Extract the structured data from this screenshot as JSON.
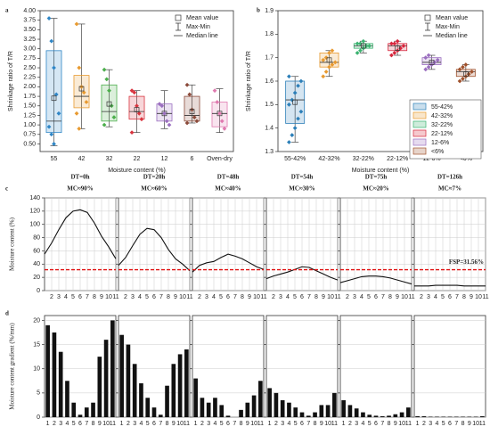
{
  "chart_data": [
    {
      "type": "box",
      "panel": "a",
      "ylabel": "Shrinkage ratio of T/R",
      "xlabel": "Moisture content (%)",
      "categories": [
        "55",
        "42",
        "32",
        "22",
        "12",
        "6",
        "Oven-dry"
      ],
      "ylim": [
        0.3,
        4.0
      ],
      "yticks": [
        {
          "value": 0.5,
          "label": "0.50"
        },
        {
          "value": 0.75,
          "label": "0.75"
        },
        {
          "value": 1,
          "label": "1.00"
        },
        {
          "value": 1.25,
          "label": "1.25"
        },
        {
          "value": 1.5,
          "label": "1.50"
        },
        {
          "value": 1.75,
          "label": "1.75"
        },
        {
          "value": 2,
          "label": "2.00"
        },
        {
          "value": 2.25,
          "label": "2.25"
        },
        {
          "value": 2.5,
          "label": "2.50"
        },
        {
          "value": 2.75,
          "label": "2.75"
        },
        {
          "value": 3,
          "label": "3.00"
        },
        {
          "value": 3.25,
          "label": "3.25"
        },
        {
          "value": 3.5,
          "label": "3.50"
        },
        {
          "value": 3.75,
          "label": "3.75"
        },
        {
          "value": 4,
          "label": "4.00"
        }
      ],
      "legend": [
        "Mean value",
        "Max-Min",
        "Median line"
      ],
      "boxes": [
        {
          "color": "#2f86c6",
          "min": 0.45,
          "q1": 0.8,
          "median": 1.1,
          "q3": 2.95,
          "max": 3.8,
          "mean": 1.7,
          "points": [
            3.8,
            3.2,
            2.5,
            1.8,
            1.3,
            0.95,
            0.75,
            0.5
          ]
        },
        {
          "color": "#e89a30",
          "min": 0.9,
          "q1": 1.45,
          "median": 1.75,
          "q3": 2.3,
          "max": 3.65,
          "mean": 1.95,
          "points": [
            3.65,
            2.5,
            2.0,
            1.85,
            1.6,
            1.3,
            0.9
          ]
        },
        {
          "color": "#4cae4c",
          "min": 0.95,
          "q1": 1.1,
          "median": 1.35,
          "q3": 2.05,
          "max": 2.45,
          "mean": 1.55,
          "points": [
            2.45,
            2.2,
            1.9,
            1.5,
            1.2,
            1.0
          ]
        },
        {
          "color": "#d9343f",
          "min": 0.8,
          "q1": 1.15,
          "median": 1.35,
          "q3": 1.75,
          "max": 1.9,
          "mean": 1.4,
          "points": [
            1.9,
            1.85,
            1.5,
            1.3,
            1.15,
            0.8
          ]
        },
        {
          "color": "#9b6fc0",
          "min": 0.9,
          "q1": 1.1,
          "median": 1.3,
          "q3": 1.55,
          "max": 1.9,
          "mean": 1.3,
          "points": [
            1.55,
            1.5,
            1.3,
            1.1,
            1.0
          ]
        },
        {
          "color": "#8b4a3a",
          "min": 1.05,
          "q1": 1.1,
          "median": 1.25,
          "q3": 1.75,
          "max": 2.05,
          "mean": 1.35,
          "points": [
            2.05,
            1.8,
            1.4,
            1.2,
            1.1,
            1.05
          ]
        },
        {
          "color": "#e07ab0",
          "min": 0.8,
          "q1": 0.95,
          "median": 1.3,
          "q3": 1.6,
          "max": 1.95,
          "mean": 1.3,
          "points": [
            1.9,
            1.6,
            1.3,
            1.1,
            0.9
          ]
        }
      ]
    },
    {
      "type": "box",
      "panel": "b",
      "ylabel": "Shrinkage ratio of T/R",
      "xlabel": "Moisture content (%)",
      "categories": [
        "55-42%",
        "42-32%",
        "32-22%",
        "22-12%",
        "12-6%",
        "<6%"
      ],
      "ylim": [
        1.3,
        1.9
      ],
      "yticks": [
        1.3,
        1.4,
        1.5,
        1.6,
        1.7,
        1.8,
        1.9
      ],
      "legend": [
        "Mean value",
        "Max-Min",
        "Median line"
      ],
      "category_legend": true,
      "boxes": [
        {
          "color": "#2c7fb8",
          "min": 1.34,
          "q1": 1.42,
          "median": 1.52,
          "q3": 1.6,
          "max": 1.62,
          "mean": 1.51,
          "points": [
            1.34,
            1.37,
            1.4,
            1.44,
            1.47,
            1.5,
            1.52,
            1.55,
            1.58,
            1.6,
            1.62
          ]
        },
        {
          "color": "#e89a30",
          "min": 1.62,
          "q1": 1.66,
          "median": 1.68,
          "q3": 1.72,
          "max": 1.73,
          "mean": 1.69,
          "points": [
            1.62,
            1.64,
            1.66,
            1.67,
            1.68,
            1.69,
            1.7,
            1.72,
            1.73
          ]
        },
        {
          "color": "#3cb371",
          "min": 1.72,
          "q1": 1.74,
          "median": 1.75,
          "q3": 1.76,
          "max": 1.77,
          "mean": 1.75,
          "points": [
            1.72,
            1.73,
            1.74,
            1.75,
            1.75,
            1.76,
            1.76,
            1.77
          ]
        },
        {
          "color": "#d7263d",
          "min": 1.71,
          "q1": 1.73,
          "median": 1.75,
          "q3": 1.76,
          "max": 1.77,
          "mean": 1.74,
          "points": [
            1.71,
            1.72,
            1.73,
            1.74,
            1.75,
            1.76,
            1.76,
            1.77
          ]
        },
        {
          "color": "#9b6fc0",
          "min": 1.65,
          "q1": 1.67,
          "median": 1.68,
          "q3": 1.7,
          "max": 1.71,
          "mean": 1.68,
          "points": [
            1.65,
            1.66,
            1.67,
            1.68,
            1.69,
            1.7,
            1.71
          ]
        },
        {
          "color": "#a0522d",
          "min": 1.6,
          "q1": 1.62,
          "median": 1.64,
          "q3": 1.65,
          "max": 1.67,
          "mean": 1.63,
          "points": [
            1.6,
            1.61,
            1.62,
            1.63,
            1.64,
            1.65,
            1.66,
            1.67
          ]
        }
      ]
    },
    {
      "type": "line",
      "panel": "c",
      "title": "DT=0h",
      "subtitle": "MC≈90%",
      "ylabel": "Moisture content (%)",
      "tick_labels": true,
      "grid": true,
      "color": "#111",
      "x": [
        1,
        2,
        3,
        4,
        5,
        6,
        7,
        8,
        9,
        10,
        11
      ],
      "values": [
        55,
        72,
        92,
        110,
        120,
        122,
        118,
        102,
        82,
        66,
        48
      ],
      "xlim": [
        1,
        11
      ],
      "xticks": [
        2,
        3,
        4,
        5,
        6,
        7,
        8,
        9,
        10,
        11
      ],
      "ylim": [
        0,
        140
      ],
      "yticks": [
        0,
        20,
        40,
        60,
        80,
        100,
        120,
        140
      ],
      "hline": 31.56
    },
    {
      "type": "line",
      "title": "DT=20h",
      "subtitle": "MC≈60%",
      "tick_labels": false,
      "grid": true,
      "color": "#111",
      "x": [
        1,
        2,
        3,
        4,
        5,
        6,
        7,
        8,
        9,
        10,
        11
      ],
      "values": [
        38,
        50,
        68,
        85,
        94,
        92,
        80,
        62,
        48,
        40,
        30
      ],
      "xlim": [
        1,
        11
      ],
      "xticks": [
        2,
        3,
        4,
        5,
        6,
        7,
        8,
        9,
        10,
        11
      ],
      "ylim": [
        0,
        140
      ],
      "yticks": [
        0,
        20,
        40,
        60,
        80,
        100,
        120,
        140
      ],
      "hline": 31.56
    },
    {
      "type": "line",
      "title": "DT=48h",
      "subtitle": "MC≈40%",
      "tick_labels": false,
      "grid": true,
      "color": "#111",
      "x": [
        1,
        2,
        3,
        4,
        5,
        6,
        7,
        8,
        9,
        10,
        11
      ],
      "values": [
        28,
        38,
        42,
        44,
        50,
        55,
        52,
        48,
        42,
        36,
        32
      ],
      "xlim": [
        1,
        11
      ],
      "xticks": [
        2,
        3,
        4,
        5,
        6,
        7,
        8,
        9,
        10,
        11
      ],
      "ylim": [
        0,
        140
      ],
      "yticks": [
        0,
        20,
        40,
        60,
        80,
        100,
        120,
        140
      ],
      "hline": 31.56
    },
    {
      "type": "line",
      "title": "DT=54h",
      "subtitle": "MC≈30%",
      "tick_labels": false,
      "grid": true,
      "color": "#111",
      "x": [
        1,
        2,
        3,
        4,
        5,
        6,
        7,
        8,
        9,
        10,
        11
      ],
      "values": [
        18,
        22,
        25,
        28,
        32,
        36,
        35,
        30,
        25,
        20,
        16
      ],
      "xlim": [
        1,
        11
      ],
      "xticks": [
        2,
        3,
        4,
        5,
        6,
        7,
        8,
        9,
        10,
        11
      ],
      "ylim": [
        0,
        140
      ],
      "yticks": [
        0,
        20,
        40,
        60,
        80,
        100,
        120,
        140
      ],
      "hline": 31.56
    },
    {
      "type": "line",
      "title": "DT=75h",
      "subtitle": "MC≈20%",
      "tick_labels": false,
      "grid": true,
      "color": "#111",
      "x": [
        1,
        2,
        3,
        4,
        5,
        6,
        7,
        8,
        9,
        10,
        11
      ],
      "values": [
        12,
        15,
        18,
        21,
        22,
        22,
        21,
        19,
        16,
        13,
        10
      ],
      "xlim": [
        1,
        11
      ],
      "xticks": [
        2,
        3,
        4,
        5,
        6,
        7,
        8,
        9,
        10,
        11
      ],
      "ylim": [
        0,
        140
      ],
      "yticks": [
        0,
        20,
        40,
        60,
        80,
        100,
        120,
        140
      ],
      "hline": 31.56
    },
    {
      "type": "line",
      "title": "DT=126h",
      "subtitle": "MC≈7%",
      "tick_labels": false,
      "grid": true,
      "color": "#111",
      "x": [
        1,
        2,
        3,
        4,
        5,
        6,
        7,
        8,
        9,
        10,
        11
      ],
      "values": [
        7,
        7,
        7,
        8,
        8,
        8,
        8,
        7,
        7,
        7,
        7
      ],
      "xlim": [
        1,
        11
      ],
      "xticks": [
        2,
        3,
        4,
        5,
        6,
        7,
        8,
        9,
        10,
        11
      ],
      "ylim": [
        0,
        140
      ],
      "yticks": [
        0,
        20,
        40,
        60,
        80,
        100,
        120,
        140
      ],
      "hline": 31.56,
      "hline_label": "FSP=31.56%"
    },
    {
      "type": "bar",
      "panel": "d",
      "ylabel": "Moisture content gradient (%/mm)",
      "tick_labels": true,
      "grid": true,
      "color": "#111",
      "categories": [
        "1",
        "2",
        "3",
        "4",
        "5",
        "6",
        "7",
        "8",
        "9",
        "10",
        "11"
      ],
      "values": [
        19,
        17.5,
        13.5,
        7.5,
        3,
        0.5,
        2,
        3,
        12.5,
        16,
        20
      ],
      "ylim": [
        0,
        21
      ],
      "yticks": [
        0,
        5,
        10,
        15,
        20
      ]
    },
    {
      "type": "bar",
      "tick_labels": false,
      "grid": true,
      "color": "#111",
      "categories": [
        "1",
        "2",
        "3",
        "4",
        "5",
        "6",
        "7",
        "8",
        "9",
        "10",
        "11"
      ],
      "values": [
        17,
        15,
        11,
        7,
        4,
        2,
        0.5,
        6.5,
        11,
        13,
        14
      ],
      "ylim": [
        0,
        21
      ],
      "yticks": [
        0,
        5,
        10,
        15,
        20
      ]
    },
    {
      "type": "bar",
      "tick_labels": false,
      "grid": true,
      "color": "#111",
      "categories": [
        "1",
        "2",
        "3",
        "4",
        "5",
        "6",
        "7",
        "8",
        "9",
        "10",
        "11"
      ],
      "values": [
        8,
        4,
        3,
        4,
        2.5,
        0.3,
        0,
        1.5,
        3,
        4.5,
        7.5
      ],
      "ylim": [
        0,
        21
      ],
      "yticks": [
        0,
        5,
        10,
        15,
        20
      ]
    },
    {
      "type": "bar",
      "tick_labels": false,
      "grid": true,
      "color": "#111",
      "categories": [
        "1",
        "2",
        "3",
        "4",
        "5",
        "6",
        "7",
        "8",
        "9",
        "10",
        "11"
      ],
      "values": [
        6,
        5,
        3.5,
        3,
        2,
        1,
        0.3,
        1,
        2.5,
        2.5,
        5
      ],
      "ylim": [
        0,
        21
      ],
      "yticks": [
        0,
        5,
        10,
        15,
        20
      ]
    },
    {
      "type": "bar",
      "tick_labels": false,
      "grid": true,
      "color": "#111",
      "categories": [
        "1",
        "2",
        "3",
        "4",
        "5",
        "6",
        "7",
        "8",
        "9",
        "10",
        "11"
      ],
      "values": [
        3.5,
        2.5,
        1.8,
        1,
        0.5,
        0.3,
        0.2,
        0.3,
        0.6,
        1,
        2
      ],
      "ylim": [
        0,
        21
      ],
      "yticks": [
        0,
        5,
        10,
        15,
        20
      ]
    },
    {
      "type": "bar",
      "tick_labels": false,
      "grid": true,
      "color": "#111",
      "categories": [
        "1",
        "2",
        "3",
        "4",
        "5",
        "6",
        "7",
        "8",
        "9",
        "10",
        "11"
      ],
      "values": [
        0.2,
        0.2,
        0.1,
        0.1,
        0.1,
        0.1,
        0.1,
        0.1,
        0.1,
        0.1,
        0.2
      ],
      "ylim": [
        0,
        21
      ],
      "yticks": [
        0,
        5,
        10,
        15,
        20
      ]
    }
  ]
}
